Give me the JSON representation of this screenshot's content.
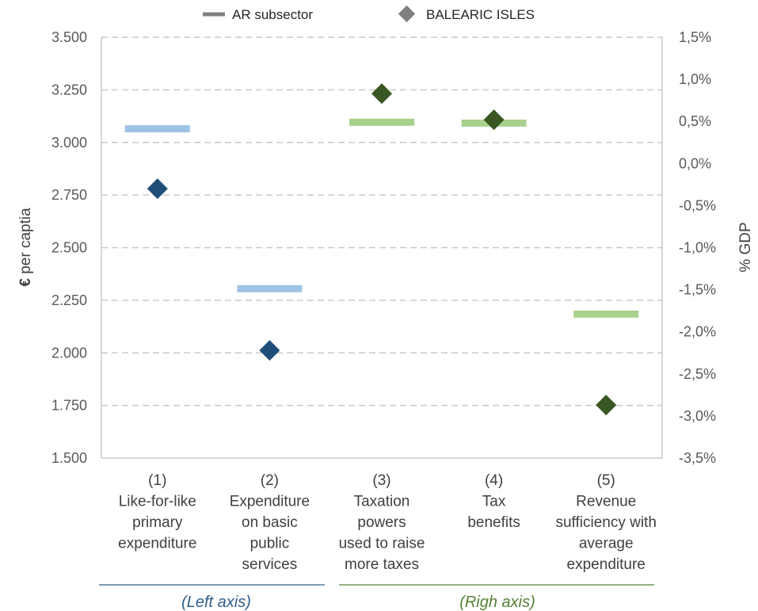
{
  "chart_data": {
    "type": "scatter",
    "legend": {
      "placement": "top",
      "items": [
        {
          "label": "AR subsector",
          "marker": "line",
          "color": "#7f7f7f"
        },
        {
          "label": "BALEARIC ISLES",
          "marker": "diamond",
          "color": "#7f7f7f"
        }
      ]
    },
    "left_axis": {
      "title_bold": "€",
      "title_rest": " per captia",
      "ylim": [
        1500,
        3500
      ],
      "ticks": [
        {
          "v": 1500,
          "label": "1.500"
        },
        {
          "v": 1750,
          "label": "1.750"
        },
        {
          "v": 2000,
          "label": "2.000"
        },
        {
          "v": 2250,
          "label": "2.250"
        },
        {
          "v": 2500,
          "label": "2.500"
        },
        {
          "v": 2750,
          "label": "2.750"
        },
        {
          "v": 3000,
          "label": "3.000"
        },
        {
          "v": 3250,
          "label": "3.250"
        },
        {
          "v": 3500,
          "label": "3.500"
        }
      ]
    },
    "right_axis": {
      "title": "% GDP",
      "ylim": [
        -3.5,
        1.5
      ],
      "ticks": [
        {
          "v": -3.5,
          "label": "-3,5%"
        },
        {
          "v": -3.0,
          "label": "-3,0%"
        },
        {
          "v": -2.5,
          "label": "-2,5%"
        },
        {
          "v": -2.0,
          "label": "-2,0%"
        },
        {
          "v": -1.5,
          "label": "-1,5%"
        },
        {
          "v": -1.0,
          "label": "-1,0%"
        },
        {
          "v": -0.5,
          "label": "-0,5%"
        },
        {
          "v": 0.0,
          "label": "0,0%"
        },
        {
          "v": 0.5,
          "label": "0,5%"
        },
        {
          "v": 1.0,
          "label": "1,0%"
        },
        {
          "v": 1.5,
          "label": "1,5%"
        }
      ]
    },
    "grid": "dashed-horizontal",
    "categories": [
      {
        "lines": [
          "(1)",
          "Like-for-like",
          "primary",
          "expenditure"
        ],
        "axis": "left",
        "ar_subsector": 3065,
        "balearic_isles": 2780
      },
      {
        "lines": [
          "(2)",
          "Expenditure",
          "on basic",
          "public",
          "services"
        ],
        "axis": "left",
        "ar_subsector": 2305,
        "balearic_isles": 2012
      },
      {
        "lines": [
          "(3)",
          "Taxation",
          "powers",
          "used to raise",
          "more taxes"
        ],
        "axis": "right",
        "ar_subsector": 0.49,
        "balearic_isles": 0.83
      },
      {
        "lines": [
          "(4)",
          "Tax",
          "benefits"
        ],
        "axis": "right",
        "ar_subsector": 0.48,
        "balearic_isles": 0.52
      },
      {
        "lines": [
          "(5)",
          "Revenue",
          "sufficiency with",
          "average",
          "expenditure"
        ],
        "axis": "right",
        "ar_subsector": -1.79,
        "balearic_isles": -2.87
      }
    ],
    "colors": {
      "left_line": "#9dc3e6",
      "left_marker": "#1f4e79",
      "right_line": "#a9d18e",
      "right_marker": "#385723"
    },
    "groups": [
      {
        "label": "(Left axis)",
        "color": "#2e5f8a"
      },
      {
        "label": "(Righ axis)",
        "color": "#548235"
      }
    ]
  }
}
